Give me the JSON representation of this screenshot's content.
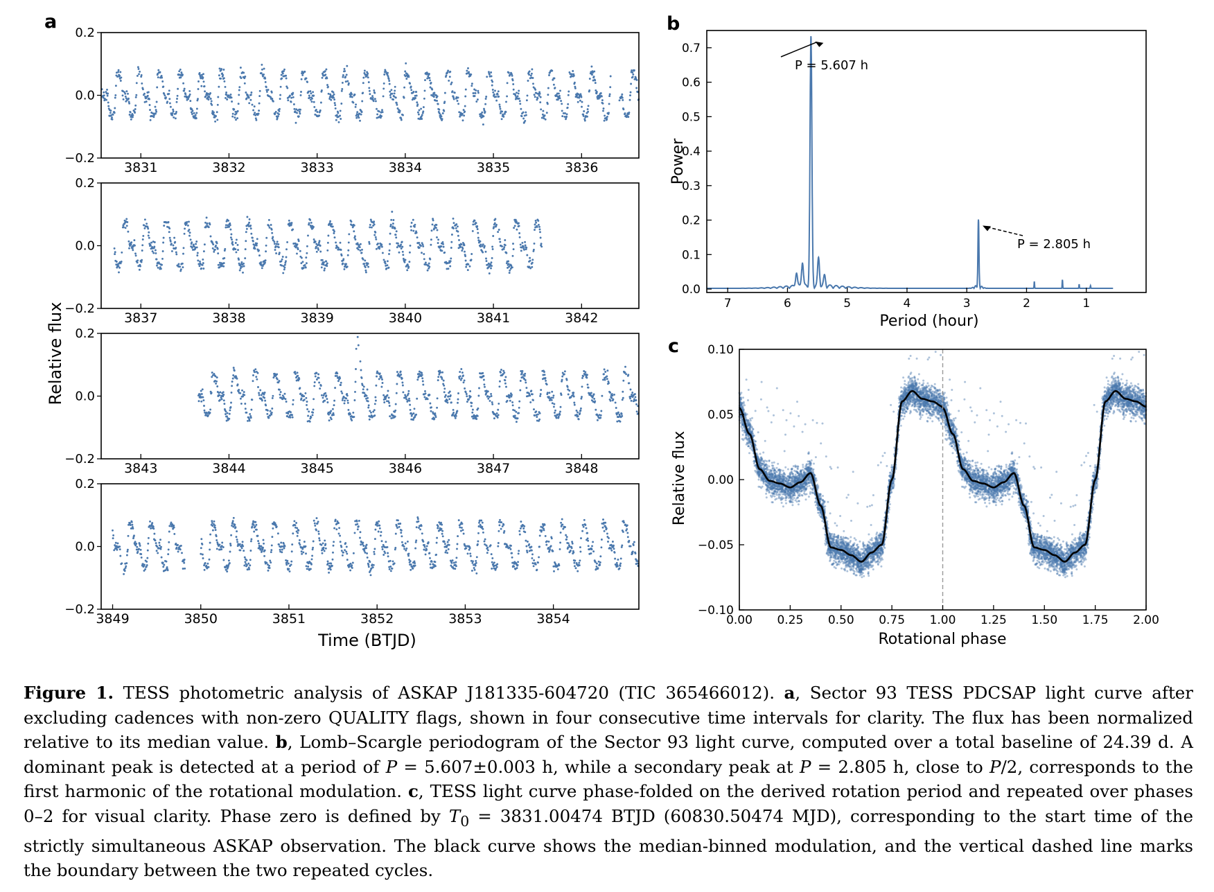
{
  "panels": {
    "a": {
      "label": "a",
      "ylabel": "Relative flux",
      "xlabel": "Time (BTJD)",
      "y_ticks": [
        "0.2",
        "0.0",
        "−0.2"
      ],
      "rows": [
        {
          "x_range": [
            3830.55,
            3836.65
          ],
          "x_ticks": [
            "3831",
            "3832",
            "3833",
            "3834",
            "3835",
            "3836"
          ],
          "segments": [
            [
              3830.55,
              3836.33
            ],
            [
              3836.43,
              3836.65
            ]
          ]
        },
        {
          "x_range": [
            3836.55,
            3842.65
          ],
          "x_ticks": [
            "3837",
            "3838",
            "3839",
            "3840",
            "3841",
            "3842"
          ],
          "segments": [
            [
              3836.7,
              3841.55
            ]
          ]
        },
        {
          "x_range": [
            3842.55,
            3848.65
          ],
          "x_ticks": [
            "3843",
            "3844",
            "3845",
            "3846",
            "3847",
            "3848"
          ],
          "segments": [
            [
              3843.65,
              3848.65
            ]
          ],
          "flare": {
            "x": 3845.45,
            "peak": 0.18
          }
        },
        {
          "x_range": [
            3848.87,
            3854.97
          ],
          "x_ticks": [
            "3849",
            "3850",
            "3851",
            "3852",
            "3853",
            "3854"
          ],
          "segments": [
            [
              3849.0,
              3849.82
            ],
            [
              3850.0,
              3854.97
            ]
          ]
        }
      ]
    },
    "b": {
      "label": "b",
      "ylabel": "Power",
      "xlabel": "Period (hour)",
      "x_ticks": [
        "7",
        "6",
        "5",
        "4",
        "3",
        "2",
        "1"
      ],
      "y_ticks": [
        "0.0",
        "0.1",
        "0.2",
        "0.3",
        "0.4",
        "0.5",
        "0.6",
        "0.7"
      ],
      "annotations": [
        {
          "text": "P = 5.607 h",
          "period": 5.607,
          "power": 0.72
        },
        {
          "text": "P = 2.805 h",
          "period": 2.805,
          "power": 0.19
        }
      ]
    },
    "c": {
      "label": "c",
      "ylabel": "Relative flux",
      "xlabel": "Rotational phase",
      "x_ticks": [
        "0.00",
        "0.25",
        "0.50",
        "0.75",
        "1.00",
        "1.25",
        "1.50",
        "1.75",
        "2.00"
      ],
      "y_ticks": [
        "0.10",
        "0.05",
        "0.00",
        "−0.05",
        "−0.10"
      ]
    }
  },
  "chart_data": [
    {
      "type": "scatter",
      "title": "a",
      "xlabel": "Time (BTJD)",
      "ylabel": "Relative flux",
      "ylim": [
        -0.2,
        0.2
      ],
      "period_hours": 5.607,
      "description_of_series": "TESS PDCSAP light curve in four time intervals",
      "xlim_rows": [
        [
          3830.55,
          3836.65
        ],
        [
          3836.55,
          3842.65
        ],
        [
          3842.55,
          3848.65
        ],
        [
          3848.87,
          3854.97
        ]
      ]
    },
    {
      "type": "line",
      "title": "b",
      "xlabel": "Period (hour)",
      "ylabel": "Power",
      "xlim": [
        7.35,
        0.0
      ],
      "ylim": [
        -0.01,
        0.75
      ],
      "peaks": [
        {
          "period": 5.607,
          "power": 0.72
        },
        {
          "period": 5.75,
          "power": 0.07
        },
        {
          "period": 5.48,
          "power": 0.08
        },
        {
          "period": 5.85,
          "power": 0.04
        },
        {
          "period": 5.38,
          "power": 0.03
        },
        {
          "period": 2.805,
          "power": 0.19
        },
        {
          "period": 1.87,
          "power": 0.02
        },
        {
          "period": 1.4,
          "power": 0.025
        },
        {
          "period": 1.12,
          "power": 0.012
        },
        {
          "period": 0.93,
          "power": 0.008
        }
      ]
    },
    {
      "type": "scatter",
      "title": "c",
      "xlabel": "Rotational phase",
      "ylabel": "Relative flux",
      "xlim": [
        0.0,
        2.0
      ],
      "ylim": [
        -0.1,
        0.1
      ],
      "median_curve": {
        "phase": [
          0.0,
          0.05,
          0.1,
          0.15,
          0.2,
          0.25,
          0.3,
          0.35,
          0.4,
          0.45,
          0.5,
          0.55,
          0.6,
          0.65,
          0.7,
          0.75,
          0.8,
          0.85,
          0.9,
          0.95,
          1.0
        ],
        "flux": [
          0.055,
          0.035,
          0.008,
          -0.001,
          -0.003,
          -0.006,
          -0.002,
          0.005,
          -0.02,
          -0.052,
          -0.054,
          -0.058,
          -0.063,
          -0.056,
          -0.05,
          0.0,
          0.06,
          0.068,
          0.062,
          0.06,
          0.056
        ]
      },
      "phase_boundary": 1.0
    }
  ],
  "caption": {
    "fig_label": "Figure 1.",
    "intro": "TESS photometric analysis of ASKAP J181335-604720 (TIC 365466012).",
    "a_label": "a",
    "a_text": ", Sector 93 TESS PDCSAP light curve after excluding cadences with non-zero QUALITY flags, shown in four consecutive time intervals for clarity.  The flux has been normalized relative to its median value.",
    "b_label": "b",
    "b_text1": ", Lomb–Scargle periodogram of the Sector 93 light curve, computed over a total baseline of 24.39 d.  A dominant peak is detected at a period of",
    "b_eq1": "P",
    "b_eq1_val": " = 5.607±0.003 h, while a secondary peak at",
    "b_eq2": "P",
    "b_eq2_val": " = 2.805 h, close to",
    "b_eq3": "P",
    "b_eq3_val": "/2, corresponds to the first harmonic of the rotational modulation.",
    "c_label": "c",
    "c_text1": ", TESS light curve phase-folded on the derived rotation period and repeated over phases 0–2 for visual clarity.  Phase zero is defined by",
    "c_t0": "T",
    "c_t0_sub": "0",
    "c_text2": " = 3831.00474 BTJD (60830.50474 MJD), corresponding to the start time of the strictly simultaneous ASKAP observation.  The black curve shows the median-binned modulation, and the vertical dashed line marks the boundary between the two repeated cycles."
  },
  "colors": {
    "points": "#4a78ad",
    "curve": "#000000",
    "line": "#4a78ad"
  }
}
